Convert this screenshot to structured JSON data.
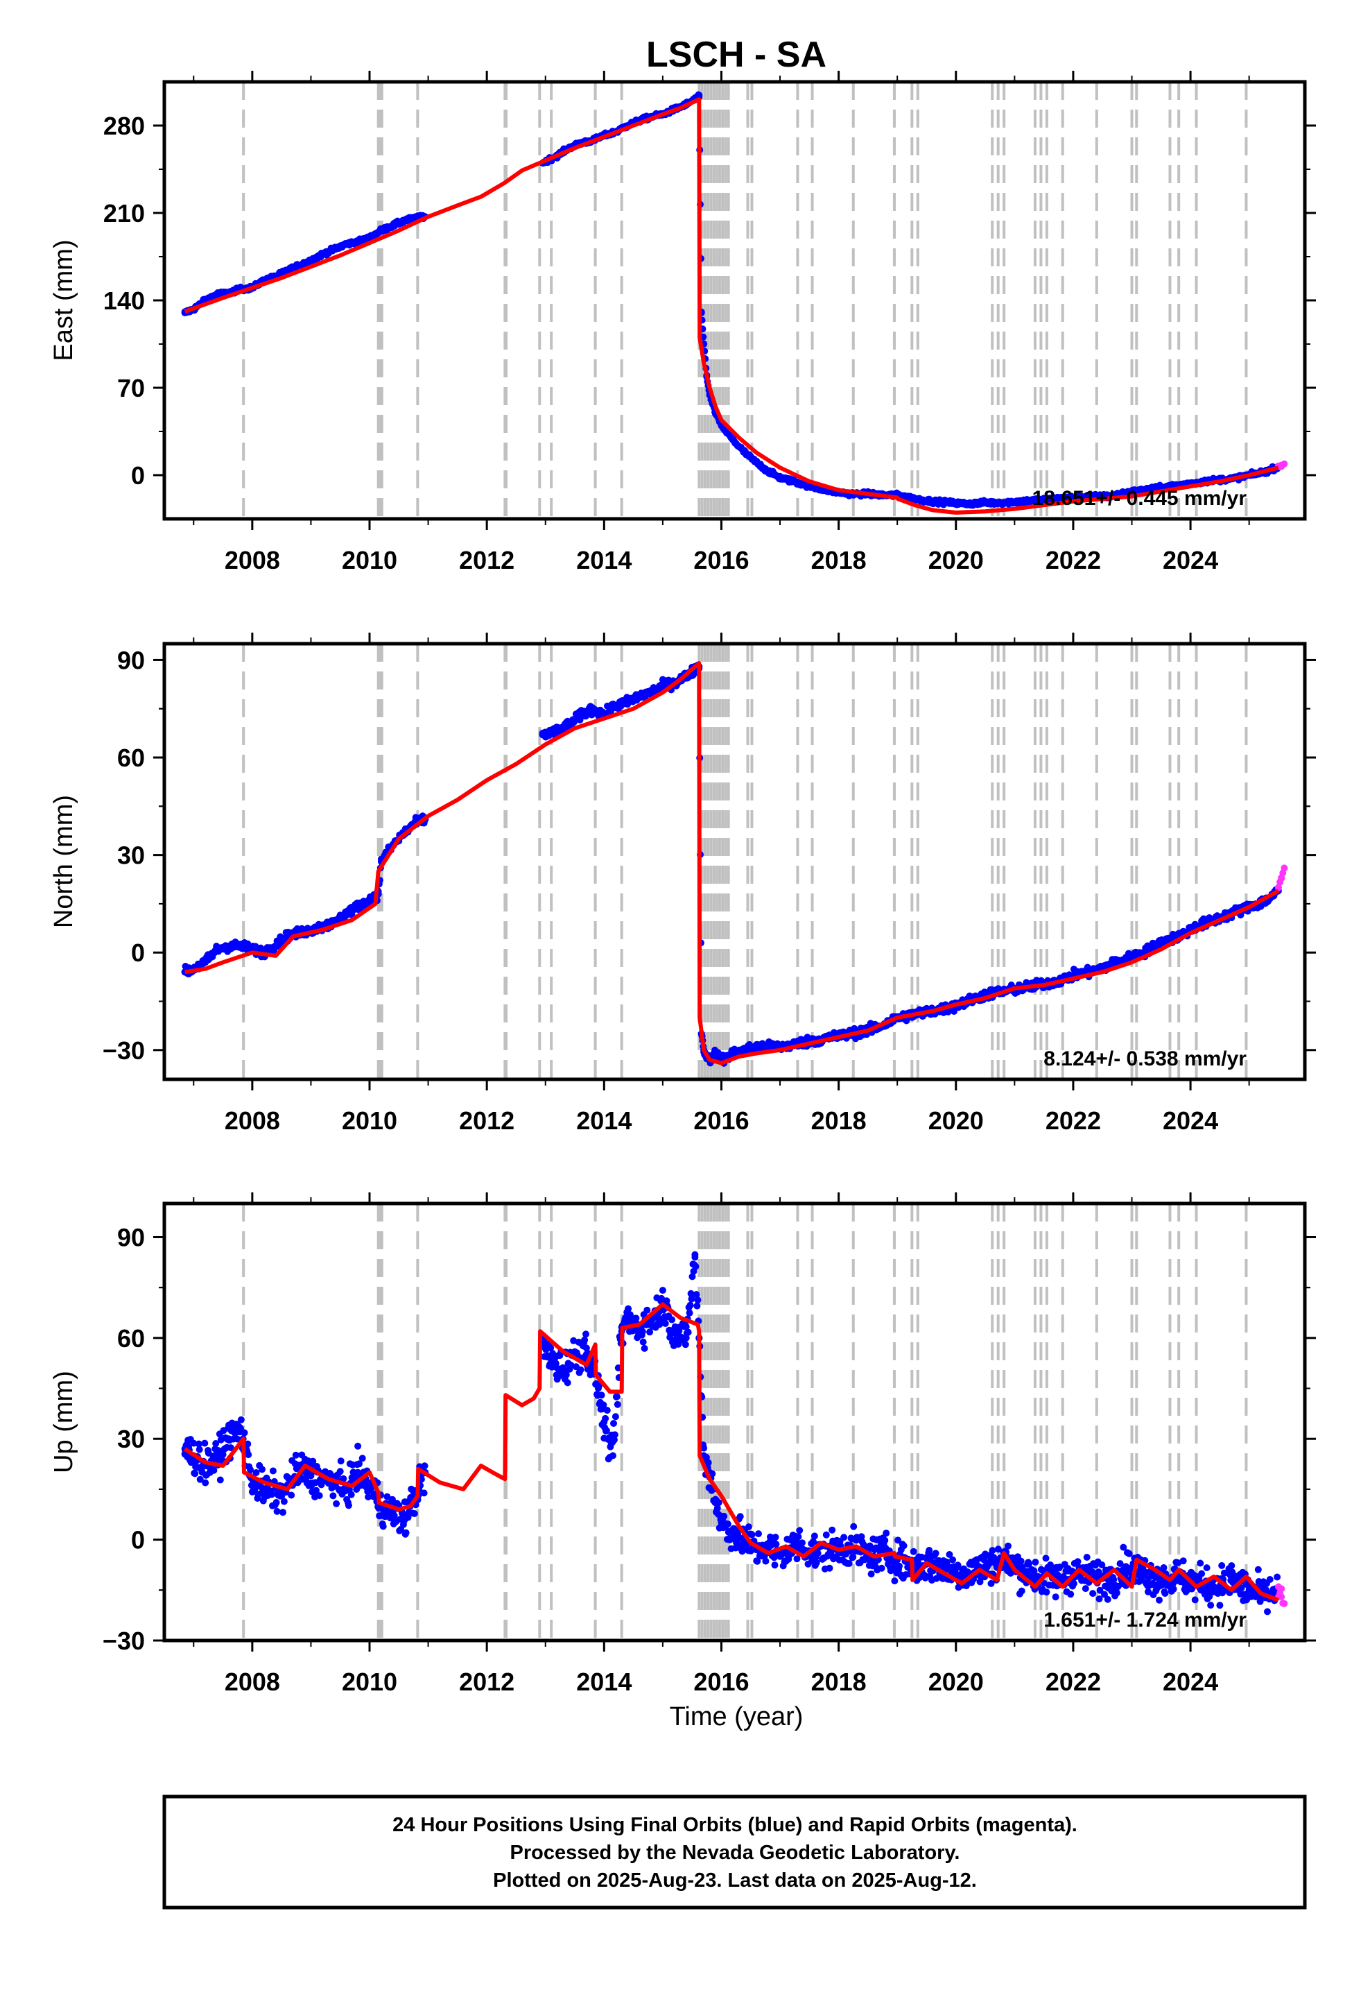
{
  "title": "LSCH - SA",
  "xlabel": "Time (year)",
  "caption": [
    "24 Hour Positions Using Final Orbits (blue) and Rapid Orbits (magenta).",
    "Processed by the Nevada Geodetic Laboratory.",
    "Plotted on 2025-Aug-23. Last data on 2025-Aug-12."
  ],
  "colors": {
    "final": "#0000ff",
    "rapid": "#ff33ff",
    "model": "#ff0000",
    "events": "#c0c0c0"
  },
  "chart_data": [
    {
      "type": "scatter",
      "title": "LSCH - SA",
      "ylabel": "East (mm)",
      "xlabel": "",
      "xlim": [
        2006.5,
        2025.95
      ],
      "ylim": [
        -35,
        315
      ],
      "yticks": [
        0,
        70,
        140,
        210,
        280
      ],
      "xticks": [
        2008,
        2010,
        2012,
        2014,
        2016,
        2018,
        2020,
        2022,
        2024
      ],
      "rate_label": "18.651+/- 0.445 mm/yr",
      "series": [
        {
          "role": "final",
          "x": [
            2006.85,
            2007.0,
            2007.2,
            2007.4,
            2007.6,
            2007.8,
            2008.0,
            2008.2,
            2008.4,
            2008.6,
            2008.8,
            2009.0,
            2009.2,
            2009.4,
            2009.6,
            2009.8,
            2010.0,
            2010.2,
            2010.4,
            2010.6,
            2010.8,
            2010.95,
            2012.95,
            2013.2,
            2013.4,
            2013.6,
            2013.8,
            2014.0,
            2014.2,
            2014.4,
            2014.6,
            2014.8,
            2015.0,
            2015.2,
            2015.4,
            2015.62,
            2015.66,
            2015.7,
            2015.75,
            2015.8,
            2015.9,
            2016.0,
            2016.2,
            2016.4,
            2016.6,
            2016.8,
            2017.0,
            2017.3,
            2017.6,
            2017.9,
            2018.2,
            2018.5,
            2018.8,
            2019.0,
            2019.3,
            2019.6,
            2019.9,
            2020.2,
            2020.5,
            2020.8,
            2021.1,
            2021.4,
            2021.7,
            2022.0,
            2022.3,
            2022.6,
            2022.9,
            2023.2,
            2023.5,
            2023.8,
            2024.1,
            2024.4,
            2024.7,
            2025.0,
            2025.3,
            2025.5
          ],
          "y": [
            130,
            133,
            140,
            145,
            146,
            149,
            150,
            156,
            159,
            164,
            168,
            172,
            177,
            181,
            185,
            187,
            190,
            196,
            200,
            204,
            206,
            207,
            250,
            256,
            262,
            266,
            268,
            272,
            275,
            280,
            284,
            287,
            289,
            293,
            297,
            303,
            130,
            105,
            80,
            64,
            50,
            40,
            28,
            18,
            10,
            3,
            -2,
            -6,
            -10,
            -13,
            -15,
            -15,
            -16,
            -16,
            -19,
            -21,
            -22,
            -23,
            -22,
            -22,
            -21,
            -20,
            -19,
            -18,
            -17,
            -17,
            -14,
            -12,
            -10,
            -8,
            -6,
            -4,
            -3,
            0,
            3,
            7
          ]
        },
        {
          "role": "rapid",
          "x": [
            2025.5,
            2025.55,
            2025.6
          ],
          "y": [
            7,
            8,
            9
          ]
        }
      ],
      "model_x": [
        2006.85,
        2007.5,
        2008.0,
        2008.5,
        2009.0,
        2009.5,
        2010.0,
        2010.5,
        2011.0,
        2011.5,
        2011.9,
        2012.3,
        2012.6,
        2013.0,
        2013.5,
        2014.0,
        2014.5,
        2015.0,
        2015.3,
        2015.62,
        2015.63,
        2015.7,
        2015.8,
        2015.9,
        2016.0,
        2016.3,
        2016.6,
        2017.0,
        2017.5,
        2018.0,
        2018.5,
        2019.0,
        2019.01,
        2019.3,
        2019.6,
        2020.0,
        2020.5,
        2021.0,
        2021.5,
        2022.0,
        2022.5,
        2023.0,
        2023.5,
        2024.0,
        2024.5,
        2025.0,
        2025.5
      ],
      "model_y": [
        131,
        142,
        150,
        158,
        167,
        176,
        186,
        196,
        207,
        216,
        223,
        234,
        244,
        252,
        262,
        271,
        280,
        289,
        294,
        301,
        110,
        90,
        70,
        55,
        44,
        30,
        18,
        6,
        -5,
        -12,
        -15,
        -18,
        -19,
        -24,
        -28,
        -30,
        -29,
        -27,
        -24,
        -21,
        -19,
        -17,
        -13,
        -9,
        -5,
        0,
        6
      ],
      "event_lines": [
        2007.85,
        2010.15,
        2010.17,
        2010.19,
        2010.21,
        2010.82,
        2012.31,
        2012.33,
        2012.9,
        2013.1,
        2013.85,
        2014.3,
        2015.62,
        2015.67,
        2015.72,
        2015.77,
        2015.82,
        2015.87,
        2015.92,
        2015.97,
        2016.02,
        2016.07,
        2016.12,
        2016.45,
        2016.52,
        2017.3,
        2017.55,
        2018.25,
        2018.95,
        2019.25,
        2019.35,
        2020.62,
        2020.72,
        2020.82,
        2021.35,
        2021.45,
        2021.55,
        2021.82,
        2022.4,
        2023.0,
        2023.08,
        2023.65,
        2023.8,
        2024.1,
        2024.95
      ]
    },
    {
      "type": "scatter",
      "ylabel": "North (mm)",
      "xlabel": "",
      "xlim": [
        2006.5,
        2025.95
      ],
      "ylim": [
        -39,
        95
      ],
      "yticks": [
        -30,
        0,
        30,
        60,
        90
      ],
      "xticks": [
        2008,
        2010,
        2012,
        2014,
        2016,
        2018,
        2020,
        2022,
        2024
      ],
      "rate_label": "8.124+/- 0.538 mm/yr",
      "series": [
        {
          "role": "final",
          "x": [
            2006.85,
            2007.0,
            2007.2,
            2007.4,
            2007.6,
            2007.8,
            2008.0,
            2008.2,
            2008.6,
            2008.8,
            2009.0,
            2009.2,
            2009.4,
            2009.6,
            2009.8,
            2010.0,
            2010.15,
            2010.2,
            2010.4,
            2010.6,
            2010.8,
            2010.95,
            2012.95,
            2013.2,
            2013.4,
            2013.6,
            2013.8,
            2014.0,
            2014.2,
            2014.4,
            2014.6,
            2014.8,
            2015.0,
            2015.2,
            2015.4,
            2015.62,
            2015.66,
            2015.7,
            2015.75,
            2015.8,
            2015.9,
            2016.0,
            2016.2,
            2016.4,
            2016.6,
            2016.8,
            2017.0,
            2017.3,
            2017.6,
            2017.9,
            2018.2,
            2018.5,
            2018.8,
            2019.0,
            2019.3,
            2019.6,
            2019.9,
            2020.2,
            2020.5,
            2020.8,
            2021.1,
            2021.4,
            2021.7,
            2022.0,
            2022.3,
            2022.6,
            2022.9,
            2023.2,
            2023.5,
            2023.8,
            2024.1,
            2024.4,
            2024.7,
            2025.0,
            2025.3,
            2025.5
          ],
          "y": [
            -6,
            -5,
            -3,
            1,
            2,
            2,
            1,
            0,
            5,
            6,
            7,
            8,
            9,
            12,
            14,
            16,
            18,
            28,
            33,
            37,
            40,
            41,
            67,
            68,
            70,
            73,
            75,
            73,
            76,
            77,
            79,
            80,
            82,
            83,
            85,
            88,
            -25,
            -30,
            -32,
            -33,
            -31,
            -33,
            -31,
            -30,
            -29,
            -29,
            -29,
            -28,
            -27,
            -26,
            -25,
            -24,
            -22,
            -20,
            -19,
            -18,
            -17,
            -15,
            -13,
            -12,
            -11,
            -10,
            -9,
            -7,
            -6,
            -4,
            -2,
            0,
            3,
            5,
            8,
            10,
            12,
            14,
            16,
            19
          ]
        },
        {
          "role": "rapid",
          "x": [
            2025.5,
            2025.55,
            2025.6
          ],
          "y": [
            20,
            23,
            26
          ]
        }
      ],
      "model_x": [
        2006.85,
        2007.2,
        2007.5,
        2008.0,
        2008.4,
        2008.7,
        2009.2,
        2009.7,
        2010.1,
        2010.15,
        2010.5,
        2011.0,
        2011.5,
        2012.0,
        2012.5,
        2013.0,
        2013.5,
        2014.0,
        2014.5,
        2015.0,
        2015.3,
        2015.62,
        2015.63,
        2015.7,
        2015.8,
        2016.0,
        2016.3,
        2016.6,
        2017.0,
        2017.5,
        2018.0,
        2018.5,
        2019.0,
        2019.3,
        2019.6,
        2020.0,
        2020.5,
        2021.0,
        2021.5,
        2022.0,
        2022.5,
        2023.0,
        2023.5,
        2024.0,
        2024.5,
        2025.0,
        2025.5
      ],
      "model_y": [
        -6,
        -5,
        -3,
        0,
        -1,
        5,
        7,
        10,
        15,
        25,
        35,
        42,
        47,
        53,
        58,
        64,
        69,
        72,
        75,
        80,
        84,
        89,
        -20,
        -30,
        -33,
        -34,
        -32,
        -31,
        -30,
        -28,
        -26,
        -24,
        -20,
        -19,
        -18,
        -16,
        -14,
        -11,
        -10,
        -8,
        -6,
        -3,
        1,
        6,
        10,
        14,
        19
      ],
      "event_lines": [
        2007.85,
        2010.15,
        2010.17,
        2010.19,
        2010.21,
        2010.82,
        2012.31,
        2012.33,
        2012.9,
        2013.1,
        2013.85,
        2014.3,
        2015.62,
        2015.67,
        2015.72,
        2015.77,
        2015.82,
        2015.87,
        2015.92,
        2015.97,
        2016.02,
        2016.07,
        2016.12,
        2016.45,
        2016.52,
        2017.3,
        2017.55,
        2018.25,
        2018.95,
        2019.25,
        2019.35,
        2020.62,
        2020.72,
        2020.82,
        2021.35,
        2021.45,
        2021.55,
        2021.82,
        2022.4,
        2023.0,
        2023.08,
        2023.65,
        2023.8,
        2024.1,
        2024.95
      ]
    },
    {
      "type": "scatter",
      "ylabel": "Up (mm)",
      "xlabel": "Time (year)",
      "xlim": [
        2006.5,
        2025.95
      ],
      "ylim": [
        -30,
        100
      ],
      "yticks": [
        -30,
        0,
        30,
        60,
        90
      ],
      "xticks": [
        2008,
        2010,
        2012,
        2014,
        2016,
        2018,
        2020,
        2022,
        2024
      ],
      "rate_label": "1.651+/- 1.724 mm/yr",
      "series": [
        {
          "role": "final",
          "x": [
            2006.85,
            2007.0,
            2007.2,
            2007.4,
            2007.6,
            2007.8,
            2008.0,
            2008.2,
            2008.5,
            2008.8,
            2009.0,
            2009.2,
            2009.4,
            2009.6,
            2009.8,
            2010.0,
            2010.2,
            2010.4,
            2010.6,
            2010.8,
            2010.95,
            2012.95,
            2013.1,
            2013.3,
            2013.5,
            2013.7,
            2013.9,
            2014.0,
            2014.15,
            2014.3,
            2014.4,
            2014.6,
            2014.8,
            2015.0,
            2015.2,
            2015.4,
            2015.55,
            2015.62,
            2015.7,
            2015.8,
            2015.9,
            2016.0,
            2016.2,
            2016.4,
            2016.6,
            2016.8,
            2017.0,
            2017.3,
            2017.6,
            2017.9,
            2018.2,
            2018.5,
            2018.8,
            2019.0,
            2019.3,
            2019.6,
            2019.9,
            2020.2,
            2020.5,
            2020.8,
            2021.1,
            2021.4,
            2021.7,
            2022.0,
            2022.3,
            2022.6,
            2022.9,
            2023.2,
            2023.5,
            2023.8,
            2024.1,
            2024.4,
            2024.7,
            2025.0,
            2025.3,
            2025.5
          ],
          "y": [
            27,
            25,
            22,
            24,
            30,
            33,
            18,
            15,
            13,
            21,
            19,
            18,
            17,
            15,
            20,
            16,
            10,
            8,
            6,
            14,
            20,
            58,
            53,
            51,
            55,
            57,
            45,
            35,
            25,
            62,
            66,
            63,
            65,
            70,
            62,
            60,
            84,
            60,
            25,
            20,
            12,
            5,
            2,
            0,
            -3,
            -2,
            -5,
            -1,
            -4,
            -3,
            -2,
            -5,
            -4,
            -6,
            -8,
            -7,
            -9,
            -10,
            -8,
            -6,
            -9,
            -11,
            -12,
            -10,
            -11,
            -12,
            -8,
            -10,
            -12,
            -11,
            -13,
            -14,
            -12,
            -15,
            -17,
            -15
          ]
        },
        {
          "role": "rapid",
          "x": [
            2025.5,
            2025.55,
            2025.6
          ],
          "y": [
            -14,
            -17,
            -19
          ]
        }
      ],
      "model_x": [
        2006.85,
        2007.2,
        2007.5,
        2007.85,
        2007.86,
        2008.2,
        2008.6,
        2008.9,
        2009.3,
        2009.7,
        2010.0,
        2010.15,
        2010.16,
        2010.5,
        2010.7,
        2010.82,
        2010.83,
        2011.2,
        2011.6,
        2011.9,
        2012.1,
        2012.31,
        2012.32,
        2012.6,
        2012.8,
        2012.9,
        2012.91,
        2013.3,
        2013.7,
        2013.85,
        2013.86,
        2014.1,
        2014.3,
        2014.31,
        2014.6,
        2015.0,
        2015.3,
        2015.6,
        2015.62,
        2015.63,
        2015.8,
        2016.0,
        2016.3,
        2016.5,
        2016.8,
        2017.1,
        2017.4,
        2017.7,
        2018.0,
        2018.3,
        2018.6,
        2018.95,
        2018.96,
        2019.25,
        2019.26,
        2019.5,
        2019.8,
        2020.1,
        2020.4,
        2020.7,
        2020.82,
        2021.0,
        2021.35,
        2021.55,
        2021.82,
        2022.1,
        2022.4,
        2022.7,
        2023.0,
        2023.08,
        2023.4,
        2023.65,
        2023.8,
        2024.1,
        2024.4,
        2024.7,
        2024.95,
        2025.2,
        2025.5
      ],
      "model_y": [
        27,
        23,
        22,
        30,
        20,
        17,
        15,
        22,
        18,
        16,
        20,
        14,
        11,
        9,
        10,
        13,
        21,
        17,
        15,
        22,
        20,
        18,
        43,
        40,
        42,
        45,
        62,
        56,
        52,
        58,
        49,
        44,
        44,
        63,
        64,
        70,
        66,
        64,
        62,
        25,
        18,
        13,
        4,
        -1,
        -4,
        -2,
        -5,
        -1,
        -3,
        -2,
        -5,
        -4,
        -5,
        -6,
        -12,
        -7,
        -10,
        -13,
        -9,
        -12,
        -4,
        -9,
        -14,
        -10,
        -14,
        -9,
        -13,
        -9,
        -14,
        -6,
        -9,
        -12,
        -9,
        -14,
        -11,
        -15,
        -11,
        -16,
        -18
      ],
      "event_lines": [
        2007.85,
        2010.15,
        2010.17,
        2010.19,
        2010.21,
        2010.82,
        2012.31,
        2012.33,
        2012.9,
        2013.1,
        2013.85,
        2014.3,
        2015.62,
        2015.67,
        2015.72,
        2015.77,
        2015.82,
        2015.87,
        2015.92,
        2015.97,
        2016.02,
        2016.07,
        2016.12,
        2016.45,
        2016.52,
        2017.3,
        2017.55,
        2018.25,
        2018.95,
        2019.25,
        2019.35,
        2020.62,
        2020.72,
        2020.82,
        2021.35,
        2021.45,
        2021.55,
        2021.82,
        2022.4,
        2023.0,
        2023.08,
        2023.65,
        2023.8,
        2024.1,
        2024.95
      ]
    }
  ]
}
